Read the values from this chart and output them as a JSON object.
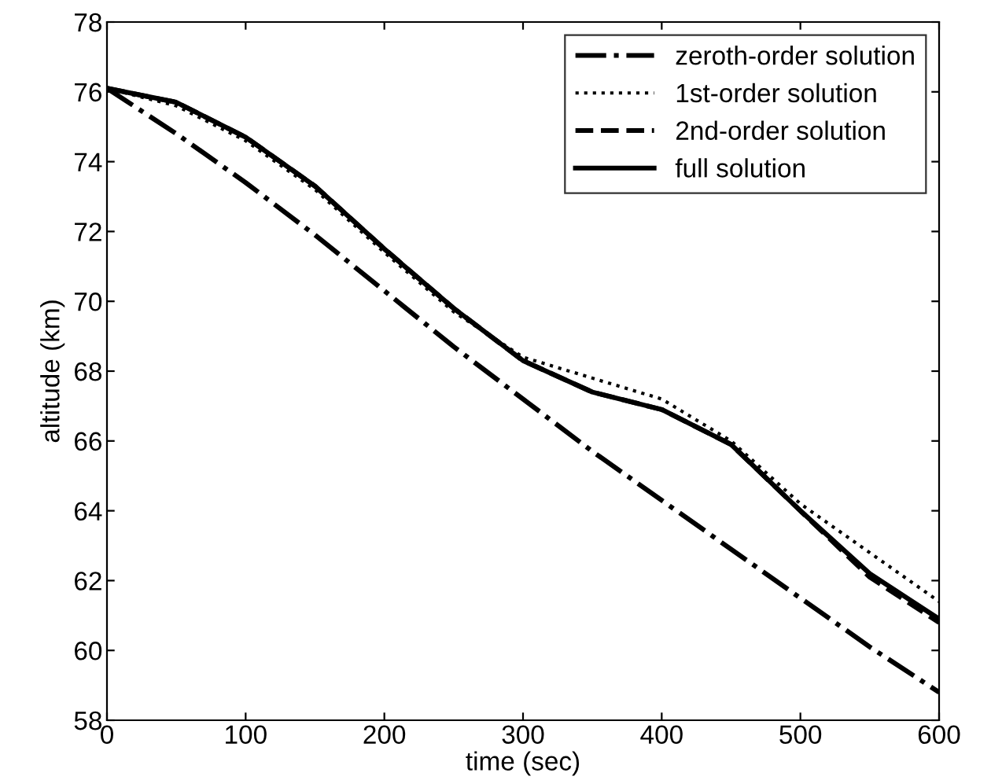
{
  "chart_data": {
    "type": "line",
    "xlabel": "time (sec)",
    "ylabel": "altitude (km)",
    "x": [
      0,
      50,
      100,
      150,
      200,
      250,
      300,
      350,
      400,
      450,
      500,
      550,
      600
    ],
    "xlim": [
      0,
      600
    ],
    "xticks": [
      0,
      100,
      200,
      300,
      400,
      500,
      600
    ],
    "ylim": [
      58,
      78
    ],
    "yticks": [
      58,
      60,
      62,
      64,
      66,
      68,
      70,
      72,
      74,
      76,
      78
    ],
    "grid": false,
    "legend": "top right",
    "marker": "none",
    "series": [
      {
        "name": "zeroth-order solution",
        "color": "#000000",
        "line_style": "dashdot",
        "values": [
          76.1,
          74.8,
          73.4,
          71.9,
          70.3,
          68.7,
          67.2,
          65.7,
          64.3,
          62.9,
          61.5,
          60.1,
          58.8
        ]
      },
      {
        "name": "1st-order solution",
        "color": "#000000",
        "line_style": "dotted",
        "values": [
          76.1,
          75.6,
          74.6,
          73.2,
          71.4,
          69.7,
          68.4,
          67.8,
          67.2,
          66.0,
          64.2,
          62.8,
          61.4
        ]
      },
      {
        "name": "2nd-order solution",
        "color": "#000000",
        "line_style": "dashed",
        "values": [
          76.1,
          75.7,
          74.7,
          73.3,
          71.5,
          69.8,
          68.3,
          67.4,
          66.9,
          65.9,
          64.0,
          62.1,
          60.8
        ]
      },
      {
        "name": "full solution",
        "color": "#000000",
        "line_style": "solid",
        "values": [
          76.1,
          75.7,
          74.7,
          73.3,
          71.5,
          69.8,
          68.3,
          67.4,
          66.9,
          65.9,
          64.0,
          62.2,
          60.9
        ]
      }
    ]
  }
}
